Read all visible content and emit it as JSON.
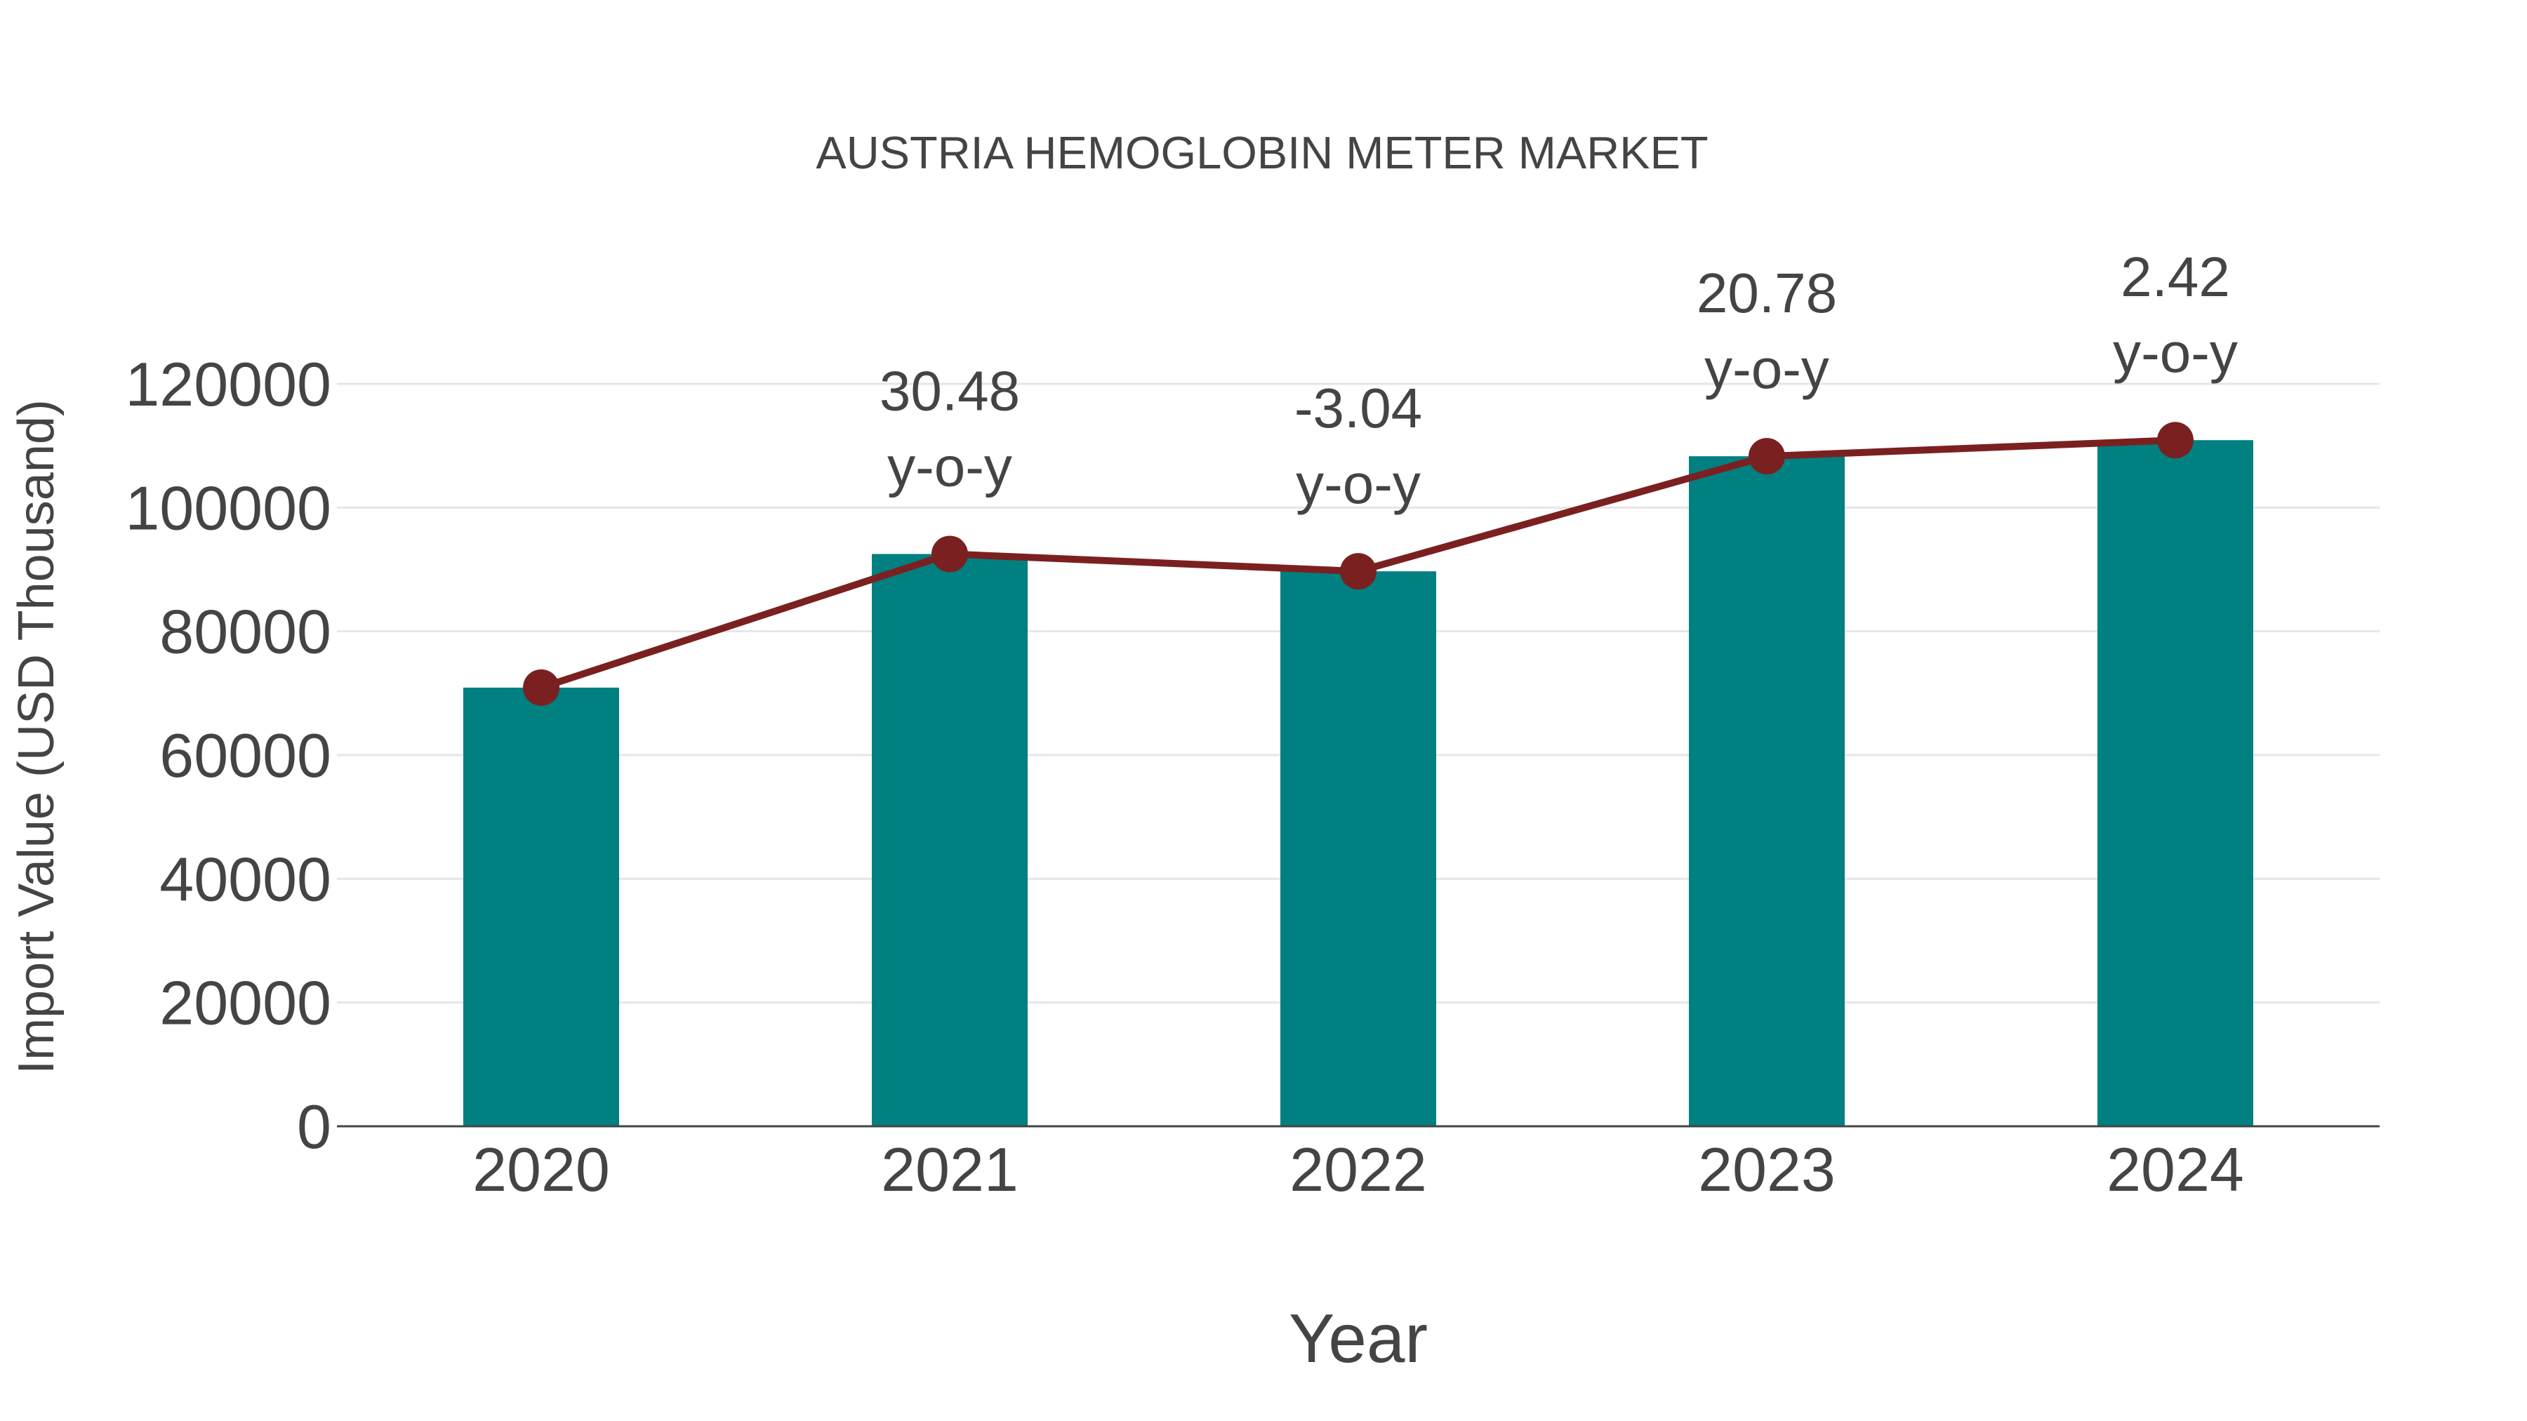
{
  "chart_data": {
    "type": "bar",
    "title": "AUSTRIA HEMOGLOBIN METER MARKET",
    "xlabel": "Year",
    "ylabel": "Import Value (USD Thousand)",
    "categories": [
      "2020",
      "2021",
      "2022",
      "2023",
      "2024"
    ],
    "series": [
      {
        "name": "Import Value",
        "type": "bar",
        "color": "#008080",
        "values": [
          70900,
          92500,
          89700,
          108300,
          110900
        ]
      },
      {
        "name": "Import Value trend",
        "type": "line",
        "color": "#7B2020",
        "values": [
          70900,
          92500,
          89700,
          108300,
          110900
        ]
      }
    ],
    "annotations": [
      {
        "category": "2021",
        "value": "30.48",
        "suffix": "y-o-y"
      },
      {
        "category": "2022",
        "value": "-3.04",
        "suffix": "y-o-y"
      },
      {
        "category": "2023",
        "value": "20.78",
        "suffix": "y-o-y"
      },
      {
        "category": "2024",
        "value": "2.42",
        "suffix": "y-o-y"
      }
    ],
    "yticks": [
      "0",
      "20000",
      "40000",
      "60000",
      "80000",
      "100000",
      "120000"
    ],
    "ylim": [
      0,
      120000
    ],
    "grid": true,
    "legend": "none"
  },
  "colors": {
    "bar": "#008080",
    "line": "#7B2020",
    "grid": "#e6e6e6",
    "axis": "#444444",
    "text": "#444444"
  }
}
